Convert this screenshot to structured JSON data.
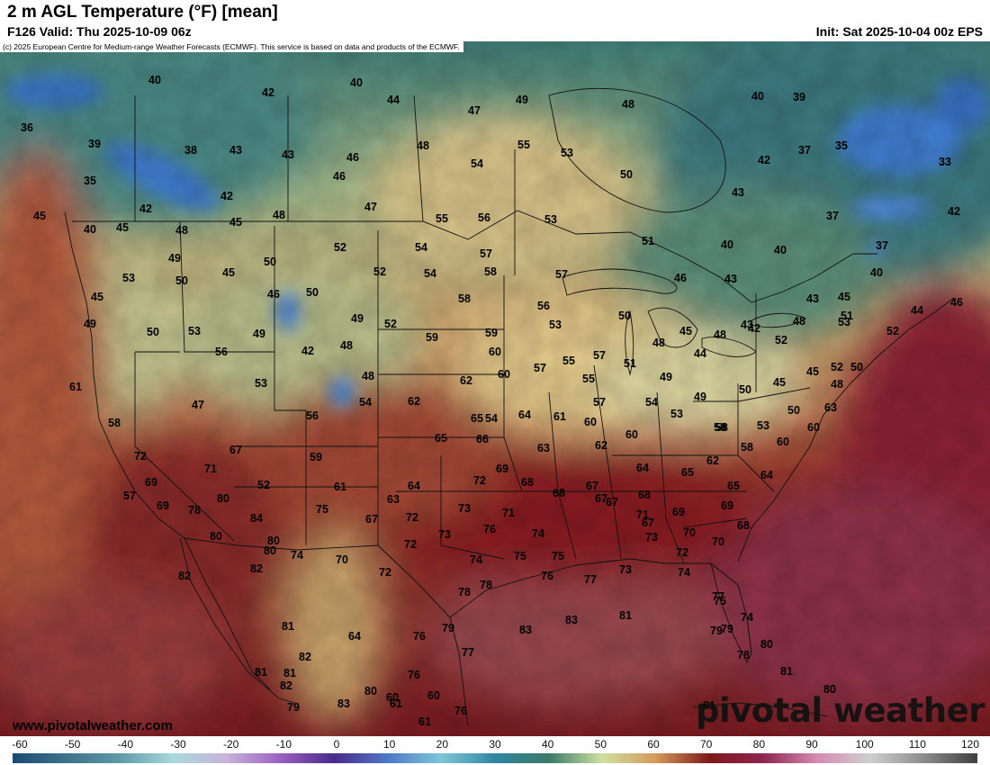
{
  "header": {
    "title": "2 m AGL Temperature (°F) [mean]",
    "valid": "F126 Valid: Thu 2025-10-09 06z",
    "init": "Init: Sat 2025-10-04 00z EPS",
    "copyright": "(c) 2025 European Centre for Medium-range Weather Forecasts (ECMWF). This service is based on data and products of the ECMWF."
  },
  "footer": {
    "site": "www.pivotalweather.com",
    "logo": "pivotal weather"
  },
  "colorbar": {
    "ticks": [
      "-60",
      "-50",
      "-40",
      "-30",
      "-20",
      "-10",
      "0",
      "10",
      "20",
      "30",
      "40",
      "50",
      "60",
      "70",
      "80",
      "90",
      "100",
      "110",
      "120"
    ],
    "stops": [
      {
        "v": -60,
        "c": "#1c4a70"
      },
      {
        "v": -40,
        "c": "#5f9aa8"
      },
      {
        "v": -30,
        "c": "#a9d9dc"
      },
      {
        "v": -20,
        "c": "#c9b3db"
      },
      {
        "v": -10,
        "c": "#9a5fc0"
      },
      {
        "v": 0,
        "c": "#4a2a8a"
      },
      {
        "v": 10,
        "c": "#4f79c8"
      },
      {
        "v": 20,
        "c": "#7ec6d8"
      },
      {
        "v": 30,
        "c": "#2f86a0"
      },
      {
        "v": 40,
        "c": "#3c7a6a"
      },
      {
        "v": 50,
        "c": "#cfe0a0"
      },
      {
        "v": 60,
        "c": "#d49a5a"
      },
      {
        "v": 70,
        "c": "#7d1a1a"
      },
      {
        "v": 80,
        "c": "#8e2450"
      },
      {
        "v": 90,
        "c": "#d58ab0"
      },
      {
        "v": 100,
        "c": "#cfcfcf"
      },
      {
        "v": 110,
        "c": "#8c8c8c"
      },
      {
        "v": 120,
        "c": "#404040"
      }
    ]
  },
  "map_labels": [
    "35",
    "40",
    "42",
    "44",
    "47",
    "49",
    "48",
    "36",
    "40",
    "39",
    "38",
    "43",
    "43",
    "46",
    "48",
    "55",
    "53",
    "40",
    "39",
    "37",
    "35",
    "35",
    "42",
    "46",
    "54",
    "50",
    "42",
    "43",
    "33",
    "45",
    "42",
    "45",
    "48",
    "47",
    "55",
    "56",
    "53",
    "42",
    "37",
    "40",
    "45",
    "48",
    "49",
    "51",
    "37",
    "40",
    "40",
    "40",
    "52",
    "54",
    "57",
    "45",
    "50",
    "52",
    "54",
    "58",
    "57",
    "46",
    "43",
    "53",
    "45",
    "46",
    "52",
    "50",
    "58",
    "56",
    "43",
    "45",
    "44",
    "46",
    "52",
    "53",
    "49",
    "49",
    "50",
    "50",
    "48",
    "52",
    "59",
    "59",
    "53",
    "50",
    "45",
    "48",
    "49",
    "56",
    "57",
    "42",
    "48",
    "60",
    "45",
    "51",
    "48",
    "42",
    "62",
    "60",
    "57",
    "55",
    "51",
    "53",
    "52",
    "61",
    "47",
    "53",
    "48",
    "49",
    "44",
    "50",
    "62",
    "55",
    "54",
    "53",
    "43",
    "50",
    "45",
    "48",
    "58",
    "63",
    "60",
    "56",
    "54",
    "65",
    "64",
    "61",
    "57",
    "54",
    "49",
    "50",
    "58",
    "53",
    "60",
    "60",
    "65",
    "66",
    "63",
    "62",
    "58",
    "60",
    "58",
    "72",
    "69",
    "67",
    "71",
    "59",
    "64",
    "72",
    "69",
    "68",
    "67",
    "64",
    "65",
    "62",
    "65",
    "64",
    "57",
    "69",
    "52",
    "61",
    "63",
    "68",
    "67",
    "68",
    "69",
    "67",
    "80",
    "78",
    "84",
    "80",
    "80",
    "73",
    "76",
    "71",
    "74",
    "73",
    "71",
    "70",
    "69",
    "73",
    "72",
    "70",
    "68",
    "67",
    "67",
    "74",
    "72",
    "74",
    "75",
    "75",
    "72",
    "82",
    "70",
    "78",
    "78",
    "77",
    "76",
    "73",
    "83",
    "80",
    "82",
    "79",
    "81",
    "75",
    "64",
    "72",
    "74",
    "76",
    "79",
    "77",
    "83",
    "75",
    "81",
    "82",
    "81",
    "83",
    "81",
    "78",
    "74",
    "79",
    "76",
    "80",
    "82",
    "60",
    "60",
    "61",
    "61",
    "76",
    "77",
    "80",
    "80",
    "79",
    "81",
    "81"
  ]
}
